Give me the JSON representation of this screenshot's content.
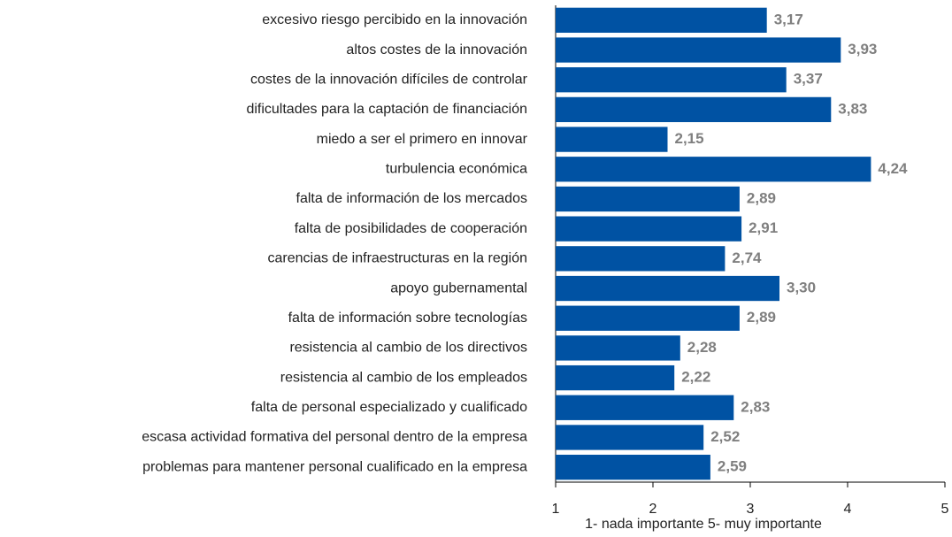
{
  "chart_data": {
    "type": "bar",
    "orientation": "horizontal",
    "x_label": "1- nada importante 5- muy importante",
    "categories": [
      "excesivo riesgo percibido en la innovación",
      "altos costes de la innovación",
      "costes de la innovación difíciles de controlar",
      "dificultades para la captación de financiación",
      "miedo a ser el primero en innovar",
      "turbulencia económica",
      "falta de información de los mercados",
      "falta de posibilidades de cooperación",
      "carencias de infraestructuras en la región",
      "apoyo gubernamental",
      "falta de información sobre tecnologías",
      "resistencia al cambio de los directivos",
      "resistencia al cambio de los empleados",
      "falta de personal especializado y cualificado",
      "escasa actividad formativa del personal dentro de la empresa",
      "problemas para mantener personal cualificado en la empresa"
    ],
    "values": [
      3.17,
      3.93,
      3.37,
      3.83,
      2.15,
      4.24,
      2.89,
      2.91,
      2.74,
      3.3,
      2.89,
      2.28,
      2.22,
      2.83,
      2.52,
      2.59
    ],
    "value_labels": [
      "3,17",
      "3,93",
      "3,37",
      "3,83",
      "2,15",
      "4,24",
      "2,89",
      "2,91",
      "2,74",
      "3,30",
      "2,89",
      "2,28",
      "2,22",
      "2,83",
      "2,52",
      "2,59"
    ],
    "color": "#0052a3",
    "xlim": [
      1,
      5
    ],
    "xticks": [
      1,
      2,
      3,
      4,
      5
    ],
    "grid": false
  }
}
